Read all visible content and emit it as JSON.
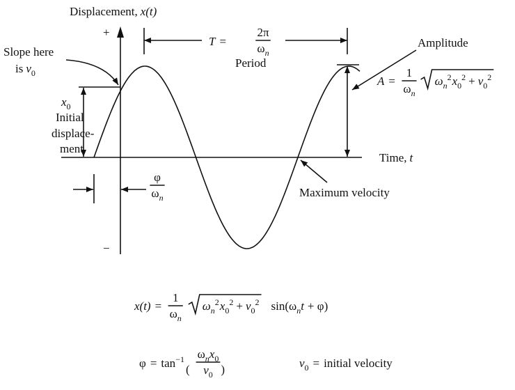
{
  "axis": {
    "y_label": "Displacement,",
    "y_var": "x(t)",
    "plus": "+",
    "minus": "−",
    "x_label": "Time,",
    "x_var": "t"
  },
  "slope_note": {
    "line1": "Slope here",
    "line2": "is",
    "var": "v",
    "sub": "0"
  },
  "initial_note": {
    "var": "x",
    "sub": "0",
    "line1": "Initial",
    "line2": "displace-",
    "line3": "ment"
  },
  "period": {
    "lhs": "T",
    "eq": "=",
    "num": "2π",
    "den": "ω",
    "den_sub": "n",
    "label": "Period"
  },
  "amplitude": {
    "label": "Amplitude",
    "lhs": "A",
    "eq": "=",
    "num": "1",
    "den": "ω",
    "den_sub": "n",
    "root": {
      "w": "ω",
      "w_sub": "n",
      "w_sup": "2",
      "x": "x",
      "x_sub": "0",
      "x_sup": "2",
      "plus": "+",
      "v": "v",
      "v_sub": "0",
      "v_sup": "2"
    }
  },
  "phase_shift": {
    "num": "φ",
    "den": "ω",
    "den_sub": "n"
  },
  "max_velocity": "Maximum velocity",
  "solution": {
    "lhs": "x(t)",
    "eq": "=",
    "num": "1",
    "den": "ω",
    "den_sub": "n",
    "root": {
      "w": "ω",
      "w_sub": "n",
      "w_sup": "2",
      "x": "x",
      "x_sub": "0",
      "x_sup": "2",
      "plus": "+",
      "v": "v",
      "v_sub": "0",
      "v_sup": "2"
    },
    "sin": "sin(",
    "arg_w": "ω",
    "arg_sub": "n",
    "arg_t": "t",
    "arg_end": "+ φ)"
  },
  "phase": {
    "lhs": "φ",
    "eq": "=",
    "tan": "tan",
    "tan_sup": "−1",
    "lparen": "(",
    "num_w": "ω",
    "num_w_sub": "n",
    "num_x": "x",
    "num_x_sub": "0",
    "den_v": "v",
    "den_v_sub": "0",
    "rparen": ")",
    "note_var": "v",
    "note_sub": "0",
    "note_eq": "=",
    "note_text": "initial velocity"
  }
}
